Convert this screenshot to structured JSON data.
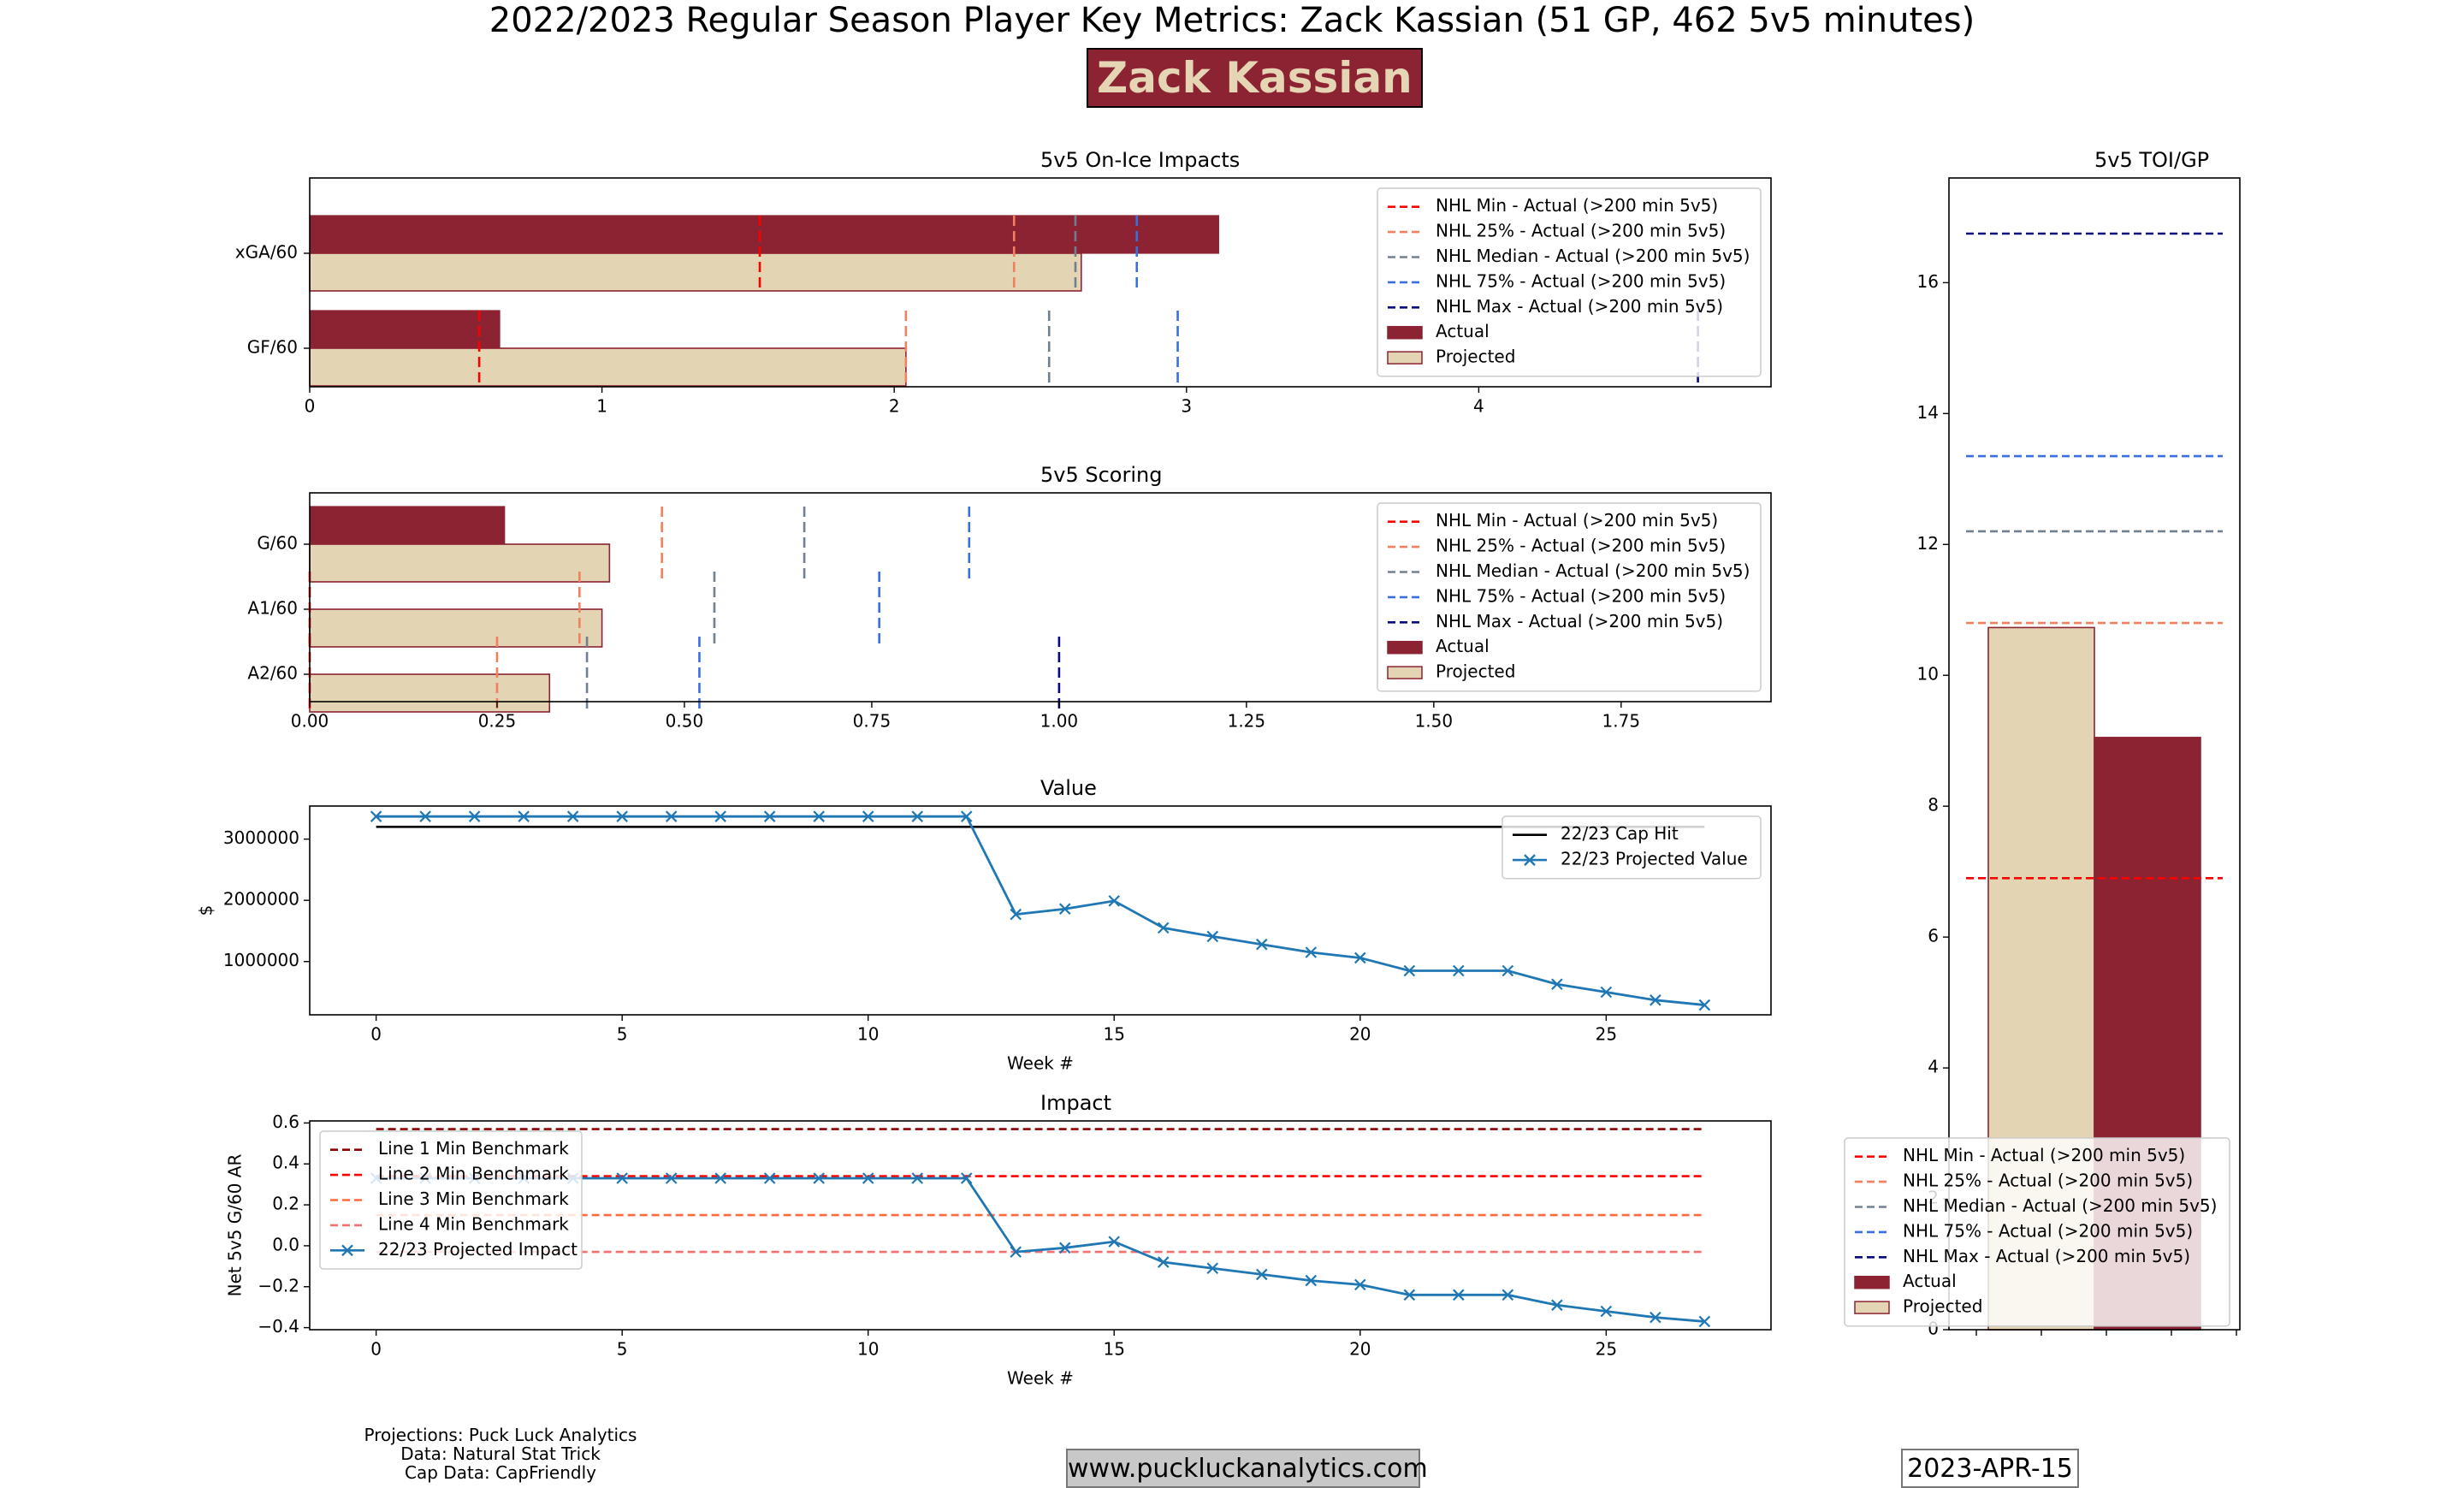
{
  "title": "2022/2023 Regular Season Player Key Metrics: Zack Kassian (51 GP, 462 5v5 minutes)",
  "player_name": "Zack Kassian",
  "footer": {
    "credits": [
      "Projections: Puck Luck Analytics",
      "Data: Natural Stat Trick",
      "Cap Data: CapFriendly"
    ],
    "website": "www.puckluckanalytics.com",
    "date": "2023-APR-15"
  },
  "colors": {
    "actual": "#8B2332",
    "projected": "#E3D4B3",
    "nhl_min": "#FF0000",
    "nhl_25": "#F08060",
    "nhl_median": "#708090",
    "nhl_75": "#3A6FE0",
    "nhl_max": "#0A0A80",
    "value_line": "#1F77B4"
  },
  "chart_data": [
    {
      "id": "impacts",
      "type": "bar",
      "orientation": "horizontal",
      "title": "5v5 On-Ice Impacts",
      "categories": [
        "xGA/60",
        "GF/60"
      ],
      "series": [
        {
          "name": "Actual",
          "values": [
            3.11,
            0.65
          ]
        },
        {
          "name": "Projected",
          "values": [
            2.64,
            2.04
          ]
        }
      ],
      "benchmarks": [
        {
          "name": "NHL Min - Actual (>200 min 5v5)",
          "values": [
            1.54,
            0.58
          ]
        },
        {
          "name": "NHL 25% - Actual (>200 min 5v5)",
          "values": [
            2.41,
            2.04
          ]
        },
        {
          "name": "NHL Median - Actual (>200 min 5v5)",
          "values": [
            2.62,
            2.53
          ]
        },
        {
          "name": "NHL 75% - Actual (>200 min 5v5)",
          "values": [
            2.83,
            2.97
          ]
        },
        {
          "name": "NHL Max - Actual (>200 min 5v5)",
          "values": [
            null,
            4.75
          ]
        }
      ],
      "xlim": [
        0,
        5.0
      ],
      "xticks": [
        0,
        1,
        2,
        3,
        4
      ],
      "xtick_labels": [
        "0",
        "1",
        "2",
        "3",
        "4"
      ],
      "legend": "top-right"
    },
    {
      "id": "scoring",
      "type": "bar",
      "orientation": "horizontal",
      "title": "5v5 Scoring",
      "categories": [
        "G/60",
        "A1/60",
        "A2/60"
      ],
      "series": [
        {
          "name": "Actual",
          "values": [
            0.26,
            0.0,
            0.0
          ]
        },
        {
          "name": "Projected",
          "values": [
            0.4,
            0.39,
            0.32
          ]
        }
      ],
      "benchmarks": [
        {
          "name": "NHL Min - Actual (>200 min 5v5)",
          "values": [
            null,
            0.0,
            0.0
          ]
        },
        {
          "name": "NHL 25% - Actual (>200 min 5v5)",
          "values": [
            0.47,
            0.36,
            0.25
          ]
        },
        {
          "name": "NHL Median - Actual (>200 min 5v5)",
          "values": [
            0.66,
            0.54,
            0.37
          ]
        },
        {
          "name": "NHL 75% - Actual (>200 min 5v5)",
          "values": [
            0.88,
            0.76,
            0.52
          ]
        },
        {
          "name": "NHL Max - Actual (>200 min 5v5)",
          "values": [
            null,
            null,
            1.0
          ]
        }
      ],
      "xlim": [
        0,
        1.95
      ],
      "xticks": [
        0,
        0.25,
        0.5,
        0.75,
        1.0,
        1.25,
        1.5,
        1.75
      ],
      "xtick_labels": [
        "0.00",
        "0.25",
        "0.50",
        "0.75",
        "1.00",
        "1.25",
        "1.50",
        "1.75"
      ],
      "legend": "top-right"
    },
    {
      "id": "value",
      "type": "line",
      "title": "Value",
      "xlabel": "Week #",
      "ylabel": "$",
      "x": [
        0,
        1,
        2,
        3,
        4,
        5,
        6,
        7,
        8,
        9,
        10,
        11,
        12,
        13,
        14,
        15,
        16,
        17,
        18,
        19,
        20,
        21,
        22,
        23,
        24,
        25,
        26,
        27
      ],
      "series": [
        {
          "name": "22/23 Cap Hit",
          "values": [
            3200000,
            3200000
          ],
          "x": [
            0,
            27
          ]
        },
        {
          "name": "22/23 Projected Value",
          "values": [
            3370000,
            3370000,
            3370000,
            3370000,
            3370000,
            3370000,
            3370000,
            3370000,
            3370000,
            3370000,
            3370000,
            3370000,
            3370000,
            1770000,
            1860000,
            1990000,
            1550000,
            1410000,
            1280000,
            1150000,
            1060000,
            850000,
            850000,
            850000,
            630000,
            500000,
            370000,
            290000
          ]
        }
      ],
      "xlim": [
        -1.35,
        28.35
      ],
      "ylim": [
        130000,
        3540000
      ],
      "xticks": [
        0,
        5,
        10,
        15,
        20,
        25
      ],
      "yticks": [
        1000000,
        2000000,
        3000000
      ],
      "ytick_labels": [
        "1000000",
        "2000000",
        "3000000"
      ],
      "legend": "top-right"
    },
    {
      "id": "impact",
      "type": "line",
      "title": "Impact",
      "xlabel": "Week #",
      "ylabel": "Net 5v5 G/60 AR",
      "x": [
        0,
        1,
        2,
        3,
        4,
        5,
        6,
        7,
        8,
        9,
        10,
        11,
        12,
        13,
        14,
        15,
        16,
        17,
        18,
        19,
        20,
        21,
        22,
        23,
        24,
        25,
        26,
        27
      ],
      "series": [
        {
          "name": "Line 1 Min Benchmark",
          "values": [
            0.57,
            0.57
          ],
          "x": [
            0,
            27
          ]
        },
        {
          "name": "Line 2 Min Benchmark",
          "values": [
            0.34,
            0.34
          ],
          "x": [
            0,
            27
          ]
        },
        {
          "name": "Line 3 Min Benchmark",
          "values": [
            0.15,
            0.15
          ],
          "x": [
            0,
            27
          ]
        },
        {
          "name": "Line 4 Min Benchmark",
          "values": [
            -0.03,
            -0.03
          ],
          "x": [
            0,
            27
          ]
        },
        {
          "name": "22/23 Projected Impact",
          "values": [
            0.33,
            0.33,
            0.33,
            0.33,
            0.33,
            0.33,
            0.33,
            0.33,
            0.33,
            0.33,
            0.33,
            0.33,
            0.33,
            -0.03,
            -0.01,
            0.02,
            -0.08,
            -0.11,
            -0.14,
            -0.17,
            -0.19,
            -0.24,
            -0.24,
            -0.24,
            -0.29,
            -0.32,
            -0.35,
            -0.37
          ]
        }
      ],
      "xlim": [
        -1.35,
        28.35
      ],
      "ylim": [
        -0.41,
        0.61
      ],
      "xticks": [
        0,
        5,
        10,
        15,
        20,
        25
      ],
      "yticks": [
        -0.4,
        -0.2,
        0.0,
        0.2,
        0.4,
        0.6
      ],
      "ytick_labels": [
        "−0.4",
        "−0.2",
        "0.0",
        "0.2",
        "0.4",
        "0.6"
      ],
      "legend": "top-left"
    },
    {
      "id": "toi",
      "type": "bar",
      "title": "5v5 TOI/GP",
      "series": [
        {
          "name": "Projected",
          "values": [
            10.73
          ]
        },
        {
          "name": "Actual",
          "values": [
            9.05
          ]
        }
      ],
      "benchmarks": [
        {
          "name": "NHL Min - Actual (>200 min 5v5)",
          "value": 6.9
        },
        {
          "name": "NHL 25% - Actual (>200 min 5v5)",
          "value": 10.8
        },
        {
          "name": "NHL Median - Actual (>200 min 5v5)",
          "value": 12.2
        },
        {
          "name": "NHL 75% - Actual (>200 min 5v5)",
          "value": 13.35
        },
        {
          "name": "NHL Max - Actual (>200 min 5v5)",
          "value": 16.75
        }
      ],
      "ylim": [
        0,
        17.6
      ],
      "yticks": [
        0,
        2,
        4,
        6,
        8,
        10,
        12,
        14,
        16
      ],
      "legend": "bottom"
    }
  ]
}
